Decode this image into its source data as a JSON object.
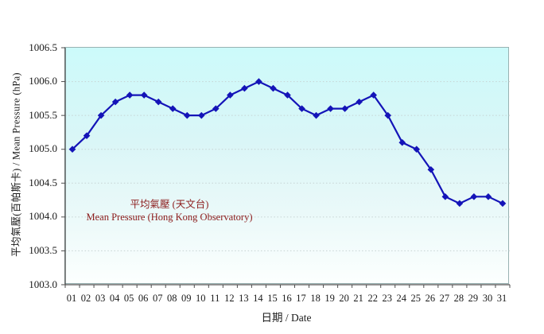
{
  "chart_data": {
    "type": "line",
    "title": "",
    "xlabel": "日期 / Date",
    "ylabel": "平均氣壓(百帕斯卡) / Mean Pressure (hPa)",
    "categories": [
      "01",
      "02",
      "03",
      "04",
      "05",
      "06",
      "07",
      "08",
      "09",
      "10",
      "11",
      "12",
      "13",
      "14",
      "15",
      "16",
      "17",
      "18",
      "19",
      "20",
      "21",
      "22",
      "23",
      "24",
      "25",
      "26",
      "27",
      "28",
      "29",
      "30",
      "31"
    ],
    "series": [
      {
        "name": "平均氣壓 (天文台) / Mean Pressure (Hong Kong Observatory)",
        "values": [
          1005.0,
          1005.2,
          1005.5,
          1005.7,
          1005.8,
          1005.8,
          1005.7,
          1005.6,
          1005.5,
          1005.5,
          1005.6,
          1005.8,
          1005.9,
          1006.0,
          1005.9,
          1005.8,
          1005.6,
          1005.5,
          1005.6,
          1005.6,
          1005.7,
          1005.8,
          1005.5,
          1005.1,
          1005.0,
          1004.7,
          1004.3,
          1004.2,
          1004.3,
          1004.3,
          1004.2
        ]
      }
    ],
    "ylim": [
      1003.0,
      1006.5
    ],
    "ytick_labels": [
      "1006.5",
      "1006.0",
      "1005.5",
      "1005.0",
      "1004.5",
      "1004.0",
      "1003.5",
      "1003.0"
    ],
    "grid": "horizontal-dotted",
    "legend_position": "inside-left-center",
    "marker": "diamond"
  },
  "legend": {
    "zh": "平均氣壓 (天文台)",
    "en": "Mean Pressure (Hong Kong Observatory)"
  },
  "colors": {
    "line": "#1414b8",
    "marker": "#1414b8",
    "legend_text": "#8b1a1a",
    "plot_bg_top": "#ccfafa",
    "plot_bg_bottom": "#fcfffe",
    "grid": "#c6d2d2",
    "axis": "#4d4d4d",
    "plot_border": "#98b2b2",
    "tick_label": "#1a1a1a"
  }
}
